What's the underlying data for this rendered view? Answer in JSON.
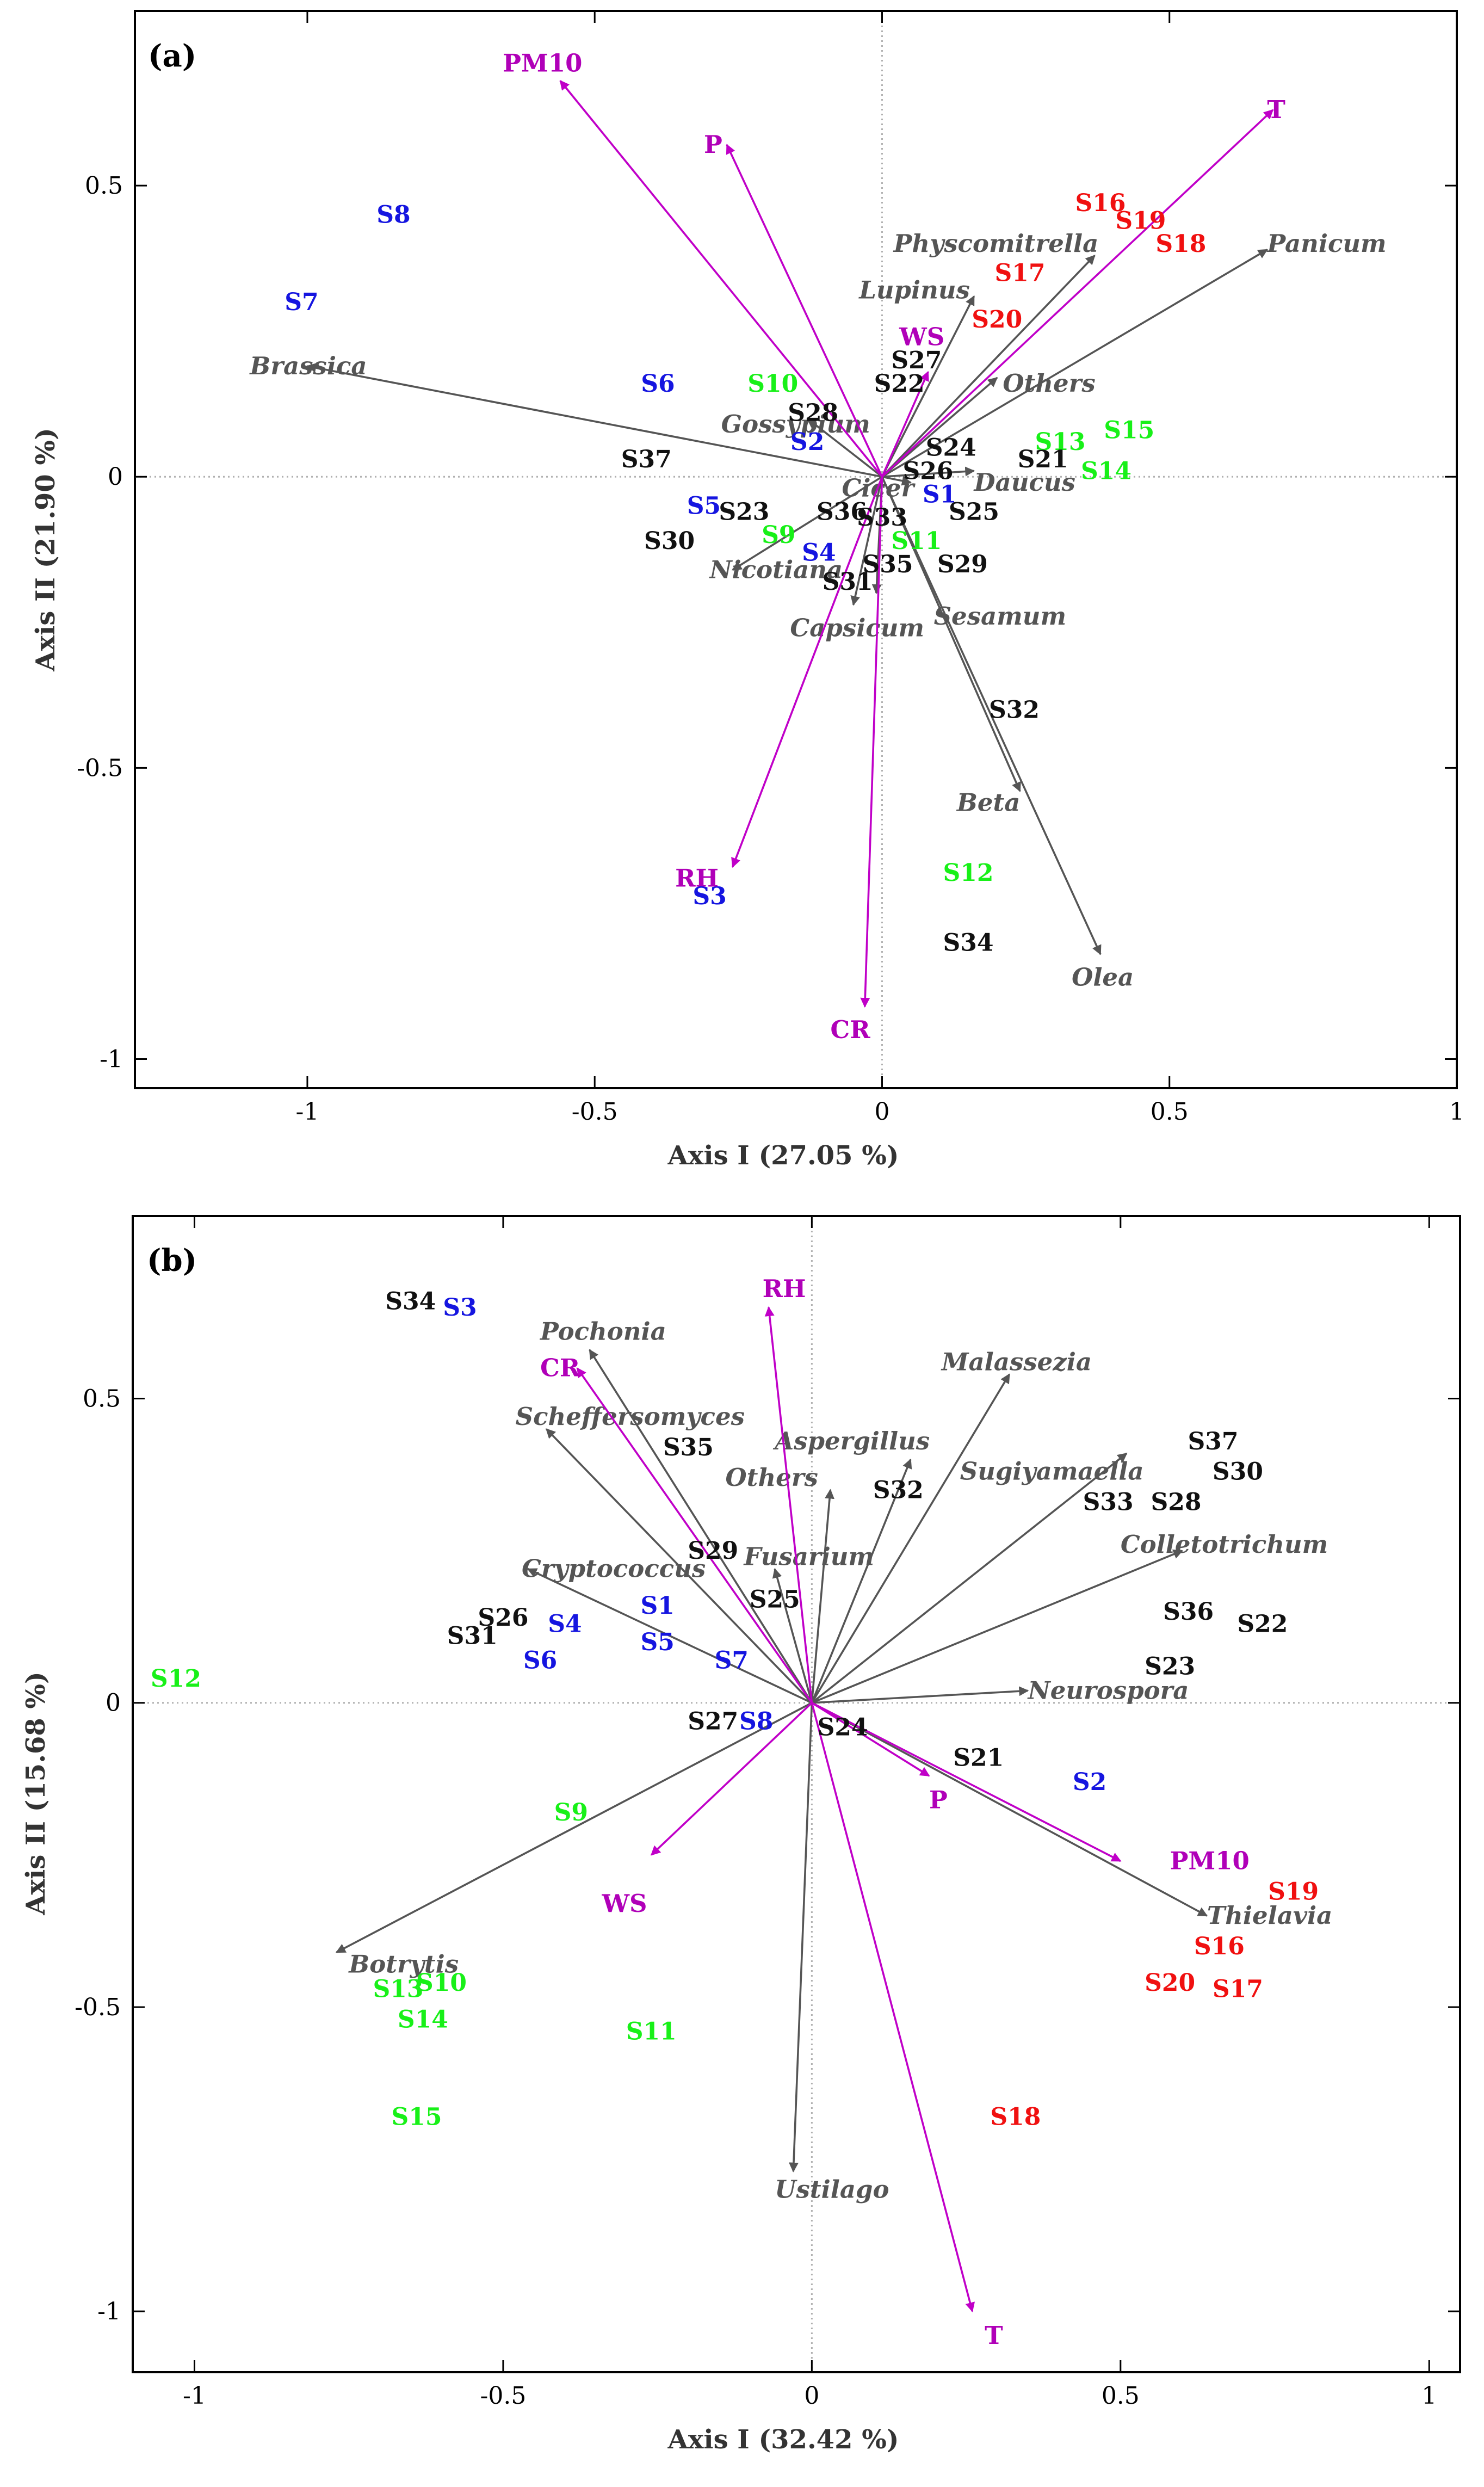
{
  "colors": {
    "black_group": "#111111",
    "blue_group": "#1515e0",
    "green_group": "#18f018",
    "red_group": "#f01010",
    "env_vector": "#c000c8",
    "genus_vector": "#555555"
  },
  "chart_data": [
    {
      "panel": "(a)",
      "type": "scatter",
      "subtype": "biplot",
      "xlabel": "Axis I (27.05 %)",
      "ylabel": "Axis II (21.90 %)",
      "xlim": [
        -1.3,
        1.0
      ],
      "ylim": [
        -1.05,
        0.8
      ],
      "xticks": [
        -1,
        -0.5,
        0,
        0.5,
        1
      ],
      "xtick_labels": [
        "-1",
        "-0.5",
        "0",
        "0.5",
        "1"
      ],
      "yticks": [
        -1,
        -0.5,
        0,
        0.5
      ],
      "ytick_labels": [
        "-1",
        "-0.5",
        "0",
        "0.5"
      ],
      "reference_lines": [
        0,
        0
      ],
      "sites": [
        {
          "label": "S1",
          "group": "blue",
          "x": 0.1,
          "y": -0.03
        },
        {
          "label": "S2",
          "group": "blue",
          "x": -0.13,
          "y": 0.06
        },
        {
          "label": "S3",
          "group": "blue",
          "x": -0.3,
          "y": -0.72
        },
        {
          "label": "S4",
          "group": "blue",
          "x": -0.11,
          "y": -0.13
        },
        {
          "label": "S5",
          "group": "blue",
          "x": -0.31,
          "y": -0.05
        },
        {
          "label": "S6",
          "group": "blue",
          "x": -0.39,
          "y": 0.16
        },
        {
          "label": "S7",
          "group": "blue",
          "x": -1.01,
          "y": 0.3
        },
        {
          "label": "S8",
          "group": "blue",
          "x": -0.85,
          "y": 0.45
        },
        {
          "label": "S9",
          "group": "green",
          "x": -0.18,
          "y": -0.1
        },
        {
          "label": "S10",
          "group": "green",
          "x": -0.19,
          "y": 0.16
        },
        {
          "label": "S11",
          "group": "green",
          "x": 0.06,
          "y": -0.11
        },
        {
          "label": "S12",
          "group": "green",
          "x": 0.15,
          "y": -0.68
        },
        {
          "label": "S13",
          "group": "green",
          "x": 0.31,
          "y": 0.06
        },
        {
          "label": "S14",
          "group": "green",
          "x": 0.39,
          "y": 0.01
        },
        {
          "label": "S15",
          "group": "green",
          "x": 0.43,
          "y": 0.08
        },
        {
          "label": "S16",
          "group": "red",
          "x": 0.38,
          "y": 0.47
        },
        {
          "label": "S17",
          "group": "red",
          "x": 0.24,
          "y": 0.35
        },
        {
          "label": "S18",
          "group": "red",
          "x": 0.52,
          "y": 0.4
        },
        {
          "label": "S19",
          "group": "red",
          "x": 0.45,
          "y": 0.44
        },
        {
          "label": "S20",
          "group": "red",
          "x": 0.2,
          "y": 0.27
        },
        {
          "label": "S21",
          "group": "black",
          "x": 0.28,
          "y": 0.03
        },
        {
          "label": "S22",
          "group": "black",
          "x": 0.03,
          "y": 0.16
        },
        {
          "label": "S23",
          "group": "black",
          "x": -0.24,
          "y": -0.06
        },
        {
          "label": "S24",
          "group": "black",
          "x": 0.12,
          "y": 0.05
        },
        {
          "label": "S25",
          "group": "black",
          "x": 0.16,
          "y": -0.06
        },
        {
          "label": "S26",
          "group": "black",
          "x": 0.08,
          "y": 0.01
        },
        {
          "label": "S27",
          "group": "black",
          "x": 0.06,
          "y": 0.2
        },
        {
          "label": "S28",
          "group": "black",
          "x": -0.12,
          "y": 0.11
        },
        {
          "label": "S29",
          "group": "black",
          "x": 0.14,
          "y": -0.15
        },
        {
          "label": "S30",
          "group": "black",
          "x": -0.37,
          "y": -0.11
        },
        {
          "label": "S31",
          "group": "black",
          "x": -0.06,
          "y": -0.18
        },
        {
          "label": "S32",
          "group": "black",
          "x": 0.23,
          "y": -0.4
        },
        {
          "label": "S33",
          "group": "black",
          "x": 0.0,
          "y": -0.07
        },
        {
          "label": "S34",
          "group": "black",
          "x": 0.15,
          "y": -0.8
        },
        {
          "label": "S35",
          "group": "black",
          "x": 0.01,
          "y": -0.15
        },
        {
          "label": "S36",
          "group": "black",
          "x": -0.07,
          "y": -0.06
        },
        {
          "label": "S37",
          "group": "black",
          "x": -0.41,
          "y": 0.03
        }
      ],
      "genus_vectors": [
        {
          "name": "Brassica",
          "x": -1.0,
          "y": 0.19,
          "label_x": -1.1,
          "label_y": 0.19
        },
        {
          "name": "Gossypium",
          "x": -0.13,
          "y": 0.1,
          "label_x": -0.28,
          "label_y": 0.09
        },
        {
          "name": "Nicotiana",
          "x": -0.26,
          "y": -0.16,
          "label_x": -0.3,
          "label_y": -0.16
        },
        {
          "name": "Capsicum",
          "x": -0.05,
          "y": -0.22,
          "label_x": -0.16,
          "label_y": -0.26
        },
        {
          "name": "Sesamum",
          "x": -0.01,
          "y": -0.2,
          "label_x": 0.09,
          "label_y": -0.24
        },
        {
          "name": "Cicer",
          "x": 0.05,
          "y": -0.01,
          "label_x": -0.07,
          "label_y": -0.02
        },
        {
          "name": "Daucus",
          "x": 0.16,
          "y": 0.01,
          "label_x": 0.16,
          "label_y": -0.01
        },
        {
          "name": "Others",
          "x": 0.2,
          "y": 0.17,
          "label_x": 0.21,
          "label_y": 0.16
        },
        {
          "name": "Lupinus",
          "x": 0.16,
          "y": 0.31,
          "label_x": -0.04,
          "label_y": 0.32
        },
        {
          "name": "Physcomitrella",
          "x": 0.37,
          "y": 0.38,
          "label_x": 0.02,
          "label_y": 0.4
        },
        {
          "name": "Panicum",
          "x": 0.67,
          "y": 0.39,
          "label_x": 0.67,
          "label_y": 0.4
        },
        {
          "name": "Beta",
          "x": 0.24,
          "y": -0.54,
          "label_x": 0.13,
          "label_y": -0.56
        },
        {
          "name": "Olea",
          "x": 0.38,
          "y": -0.82,
          "label_x": 0.33,
          "label_y": -0.86
        }
      ],
      "environment_vectors": [
        {
          "name": "PM10",
          "x": -0.56,
          "y": 0.68,
          "label_x": -0.66,
          "label_y": 0.71
        },
        {
          "name": "P",
          "x": -0.27,
          "y": 0.57,
          "label_x": -0.31,
          "label_y": 0.57
        },
        {
          "name": "T",
          "x": 0.68,
          "y": 0.63,
          "label_x": 0.67,
          "label_y": 0.63
        },
        {
          "name": "WS",
          "x": 0.08,
          "y": 0.18,
          "label_x": 0.03,
          "label_y": 0.24
        },
        {
          "name": "RH",
          "x": -0.26,
          "y": -0.67,
          "label_x": -0.36,
          "label_y": -0.69
        },
        {
          "name": "CR",
          "x": -0.03,
          "y": -0.91,
          "label_x": -0.09,
          "label_y": -0.95
        }
      ]
    },
    {
      "panel": "(b)",
      "type": "scatter",
      "subtype": "biplot",
      "xlabel": "Axis I (32.42 %)",
      "ylabel": "Axis II (15.68 %)",
      "xlim": [
        -1.1,
        1.05
      ],
      "ylim": [
        -1.1,
        0.8
      ],
      "xticks": [
        -1,
        -0.5,
        0,
        0.5,
        1
      ],
      "xtick_labels": [
        "-1",
        "-0.5",
        "0",
        "0.5",
        "1"
      ],
      "yticks": [
        -1,
        -0.5,
        0,
        0.5
      ],
      "ytick_labels": [
        "-1",
        "-0.5",
        "0",
        "0.5"
      ],
      "reference_lines": [
        0,
        0
      ],
      "sites": [
        {
          "label": "S1",
          "group": "blue",
          "x": -0.25,
          "y": 0.16
        },
        {
          "label": "S2",
          "group": "blue",
          "x": 0.45,
          "y": -0.13
        },
        {
          "label": "S3",
          "group": "blue",
          "x": -0.57,
          "y": 0.65
        },
        {
          "label": "S4",
          "group": "blue",
          "x": -0.4,
          "y": 0.13
        },
        {
          "label": "S5",
          "group": "blue",
          "x": -0.25,
          "y": 0.1
        },
        {
          "label": "S6",
          "group": "blue",
          "x": -0.44,
          "y": 0.07
        },
        {
          "label": "S7",
          "group": "blue",
          "x": -0.13,
          "y": 0.07
        },
        {
          "label": "S8",
          "group": "blue",
          "x": -0.09,
          "y": -0.03
        },
        {
          "label": "S9",
          "group": "green",
          "x": -0.39,
          "y": -0.18
        },
        {
          "label": "S10",
          "group": "green",
          "x": -0.6,
          "y": -0.46
        },
        {
          "label": "S11",
          "group": "green",
          "x": -0.26,
          "y": -0.54
        },
        {
          "label": "S12",
          "group": "green",
          "x": -1.03,
          "y": 0.04
        },
        {
          "label": "S13",
          "group": "green",
          "x": -0.67,
          "y": -0.47
        },
        {
          "label": "S14",
          "group": "green",
          "x": -0.63,
          "y": -0.52
        },
        {
          "label": "S15",
          "group": "green",
          "x": -0.64,
          "y": -0.68
        },
        {
          "label": "S16",
          "group": "red",
          "x": 0.66,
          "y": -0.4
        },
        {
          "label": "S17",
          "group": "red",
          "x": 0.69,
          "y": -0.47
        },
        {
          "label": "S18",
          "group": "red",
          "x": 0.33,
          "y": -0.68
        },
        {
          "label": "S19",
          "group": "red",
          "x": 0.78,
          "y": -0.31
        },
        {
          "label": "S20",
          "group": "red",
          "x": 0.58,
          "y": -0.46
        },
        {
          "label": "S21",
          "group": "black",
          "x": 0.27,
          "y": -0.09
        },
        {
          "label": "S22",
          "group": "black",
          "x": 0.73,
          "y": 0.13
        },
        {
          "label": "S23",
          "group": "black",
          "x": 0.58,
          "y": 0.06
        },
        {
          "label": "S24",
          "group": "black",
          "x": 0.05,
          "y": -0.04
        },
        {
          "label": "S25",
          "group": "black",
          "x": -0.06,
          "y": 0.17
        },
        {
          "label": "S26",
          "group": "black",
          "x": -0.5,
          "y": 0.14
        },
        {
          "label": "S27",
          "group": "black",
          "x": -0.16,
          "y": -0.03
        },
        {
          "label": "S28",
          "group": "black",
          "x": 0.59,
          "y": 0.33
        },
        {
          "label": "S29",
          "group": "black",
          "x": -0.16,
          "y": 0.25
        },
        {
          "label": "S30",
          "group": "black",
          "x": 0.69,
          "y": 0.38
        },
        {
          "label": "S31",
          "group": "black",
          "x": -0.55,
          "y": 0.11
        },
        {
          "label": "S32",
          "group": "black",
          "x": 0.14,
          "y": 0.35
        },
        {
          "label": "S33",
          "group": "black",
          "x": 0.48,
          "y": 0.33
        },
        {
          "label": "S34",
          "group": "black",
          "x": -0.65,
          "y": 0.66
        },
        {
          "label": "S35",
          "group": "black",
          "x": -0.2,
          "y": 0.42
        },
        {
          "label": "S36",
          "group": "black",
          "x": 0.61,
          "y": 0.15
        },
        {
          "label": "S37",
          "group": "black",
          "x": 0.65,
          "y": 0.43
        }
      ],
      "genus_vectors": [
        {
          "name": "Pochonia",
          "x": -0.36,
          "y": 0.58,
          "label_x": -0.44,
          "label_y": 0.61
        },
        {
          "name": "Scheffersomyces",
          "x": -0.43,
          "y": 0.45,
          "label_x": -0.48,
          "label_y": 0.47
        },
        {
          "name": "Cryptococcus",
          "x": -0.46,
          "y": 0.22,
          "label_x": -0.47,
          "label_y": 0.22
        },
        {
          "name": "Fusarium",
          "x": -0.06,
          "y": 0.22,
          "label_x": -0.11,
          "label_y": 0.24
        },
        {
          "name": "Others",
          "x": 0.03,
          "y": 0.35,
          "label_x": -0.14,
          "label_y": 0.37
        },
        {
          "name": "Aspergillus",
          "x": 0.16,
          "y": 0.4,
          "label_x": -0.06,
          "label_y": 0.43
        },
        {
          "name": "Malassezia",
          "x": 0.32,
          "y": 0.54,
          "label_x": 0.21,
          "label_y": 0.56
        },
        {
          "name": "Sugiyamaella",
          "x": 0.51,
          "y": 0.41,
          "label_x": 0.24,
          "label_y": 0.38
        },
        {
          "name": "Colletotrichum",
          "x": 0.6,
          "y": 0.25,
          "label_x": 0.5,
          "label_y": 0.26
        },
        {
          "name": "Neurospora",
          "x": 0.35,
          "y": 0.02,
          "label_x": 0.35,
          "label_y": 0.02
        },
        {
          "name": "Thielavia",
          "x": 0.64,
          "y": -0.35,
          "label_x": 0.64,
          "label_y": -0.35
        },
        {
          "name": "Botrytis",
          "x": -0.77,
          "y": -0.41,
          "label_x": -0.75,
          "label_y": -0.43
        },
        {
          "name": "Ustilago",
          "x": -0.03,
          "y": -0.77,
          "label_x": -0.06,
          "label_y": -0.8
        }
      ],
      "environment_vectors": [
        {
          "name": "RH",
          "x": -0.07,
          "y": 0.65,
          "label_x": -0.08,
          "label_y": 0.68
        },
        {
          "name": "CR",
          "x": -0.38,
          "y": 0.55,
          "label_x": -0.44,
          "label_y": 0.55
        },
        {
          "name": "P",
          "x": 0.19,
          "y": -0.12,
          "label_x": 0.19,
          "label_y": -0.16
        },
        {
          "name": "PM10",
          "x": 0.5,
          "y": -0.26,
          "label_x": 0.58,
          "label_y": -0.26
        },
        {
          "name": "WS",
          "x": -0.26,
          "y": -0.25,
          "label_x": -0.34,
          "label_y": -0.33
        },
        {
          "name": "T",
          "x": 0.26,
          "y": -1.0,
          "label_x": 0.28,
          "label_y": -1.04
        }
      ]
    }
  ]
}
